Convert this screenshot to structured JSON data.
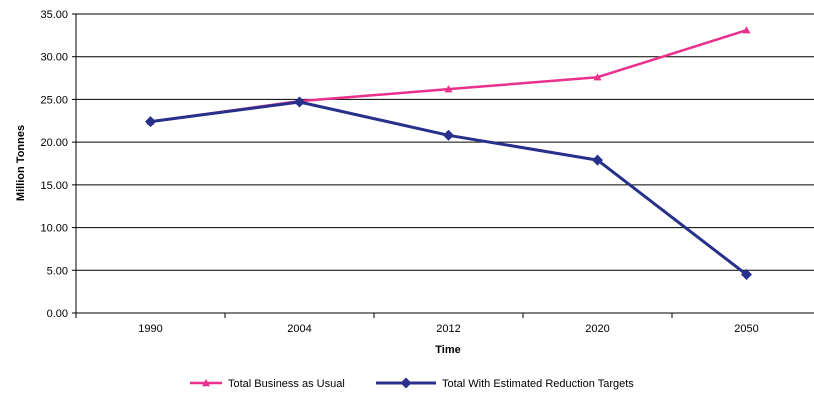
{
  "chart_data": {
    "type": "line",
    "categories": [
      "1990",
      "2004",
      "2012",
      "2020",
      "2050"
    ],
    "series": [
      {
        "name": "Total Business as Usual",
        "values": [
          22.4,
          24.8,
          26.2,
          27.6,
          33.1
        ],
        "color": "#e8308c",
        "marker": "triangle"
      },
      {
        "name": "Total With Estimated Reduction Targets",
        "values": [
          22.4,
          24.7,
          20.8,
          17.9,
          4.5
        ],
        "color": "#27308a",
        "marker": "diamond"
      }
    ],
    "xlabel": "Time",
    "ylabel": "Million Tonnes",
    "ylim": [
      0,
      35
    ],
    "yticks": [
      "0.00",
      "5.00",
      "10.00",
      "15.00",
      "20.00",
      "25.00",
      "30.00",
      "35.00"
    ],
    "grid": true,
    "legend_position": "bottom"
  }
}
